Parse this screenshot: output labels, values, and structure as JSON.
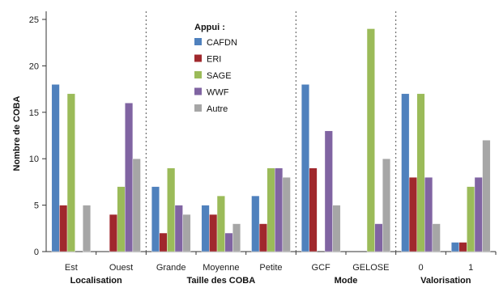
{
  "chart_data": {
    "type": "bar",
    "ylabel": "Nombre de COBA",
    "ylim": [
      0,
      25
    ],
    "yticks": [
      0,
      5,
      10,
      15,
      20,
      25
    ],
    "grid": false,
    "legend": {
      "title": "Appui :",
      "placement": "top-left-center"
    },
    "series": [
      {
        "name": "CAFDN",
        "color": "#4f81bd"
      },
      {
        "name": "ERI",
        "color": "#a0282d"
      },
      {
        "name": "SAGE",
        "color": "#9bbb59"
      },
      {
        "name": "WWF",
        "color": "#8064a2"
      },
      {
        "name": "Autre",
        "color": "#a6a6a6"
      }
    ],
    "groups": [
      {
        "label": "Localisation",
        "categories": [
          {
            "label": "Est",
            "values": [
              18,
              5,
              17,
              0,
              5
            ]
          },
          {
            "label": "Ouest",
            "values": [
              0,
              4,
              7,
              16,
              10
            ]
          }
        ]
      },
      {
        "label": "Taille des COBA",
        "categories": [
          {
            "label": "Grande",
            "values": [
              7,
              2,
              9,
              5,
              4
            ]
          },
          {
            "label": "Moyenne",
            "values": [
              5,
              4,
              6,
              2,
              3
            ]
          },
          {
            "label": "Petite",
            "values": [
              6,
              3,
              9,
              9,
              8
            ]
          }
        ]
      },
      {
        "label": "Mode",
        "categories": [
          {
            "label": "GCF",
            "values": [
              18,
              9,
              0,
              13,
              5
            ]
          },
          {
            "label": "GELOSE",
            "values": [
              0,
              0,
              24,
              3,
              10
            ]
          }
        ]
      },
      {
        "label": "Valorisation",
        "categories": [
          {
            "label": "0",
            "values": [
              17,
              8,
              17,
              8,
              3
            ]
          },
          {
            "label": "1",
            "values": [
              1,
              1,
              7,
              8,
              12
            ]
          }
        ]
      }
    ]
  }
}
